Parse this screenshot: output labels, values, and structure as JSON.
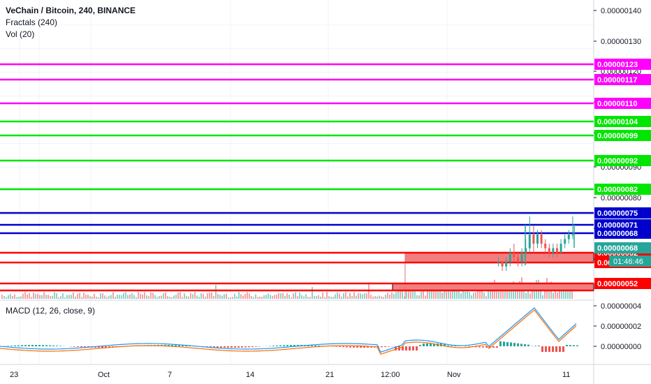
{
  "header": {
    "symbol": "VeChain / Bitcoin, 240, BINANCE",
    "indicator_fractals": "Fractals (240)",
    "indicator_vol": "Vol (20)",
    "macd_label": "MACD (12, 26, close, 9)"
  },
  "colors": {
    "magenta": "#ff00ff",
    "green": "#00e600",
    "blue": "#0000cc",
    "red": "#ff0000",
    "box_fill": "#f08080",
    "price_tag": "#26a69a",
    "timer_tag": "#26a69a",
    "macd_line": "#2196f3",
    "signal_line": "#ff6d00"
  },
  "price_axis": {
    "ticks": [
      "0.00000140",
      "0.00000130",
      "0.00000120",
      "0.00000110",
      "0.00000100",
      "0.00000090",
      "0.00000080",
      "0.00000070",
      "0.00000060"
    ],
    "tick_values": [
      140,
      130,
      120,
      110,
      100,
      90,
      80,
      70,
      60
    ]
  },
  "macd_axis": {
    "ticks": [
      "0.00000004",
      "0.00000002",
      "0.00000000"
    ]
  },
  "time_axis": {
    "labels": [
      "23",
      "Oct",
      "7",
      "14",
      "21",
      "12:00",
      "Nov",
      "11"
    ]
  },
  "levels": [
    {
      "label": "0.00000123",
      "value": 123,
      "color": "magenta"
    },
    {
      "label": "0.00000117",
      "value": 117,
      "color": "magenta"
    },
    {
      "label": "0.00000110",
      "value": 110,
      "color": "magenta"
    },
    {
      "label": "0.00000104",
      "value": 104,
      "color": "green"
    },
    {
      "label": "0.00000099",
      "value": 99,
      "color": "green"
    },
    {
      "label": "0.00000092",
      "value": 92,
      "color": "green"
    },
    {
      "label": "0.00000082",
      "value": 82,
      "color": "green"
    },
    {
      "label": "0.00000075",
      "value": 75,
      "color": "blue"
    },
    {
      "label": "0.00000071",
      "value": 71,
      "color": "blue"
    },
    {
      "label": "0.00000068",
      "value": 68,
      "color": "blue"
    },
    {
      "label": "0.00000062",
      "value": 62,
      "color": "red"
    },
    {
      "label": "0.00000059",
      "value": 59,
      "color": "red"
    },
    {
      "label": "0.00000052",
      "value": 52,
      "color": "red"
    }
  ],
  "current_price": {
    "label": "0.00000068",
    "countdown": "01:46:46"
  },
  "chart_data": {
    "type": "candlestick",
    "title": "VeChain / Bitcoin, 240, BINANCE",
    "y_unit_note": "price in units of 1e-8 BTC",
    "ylim": [
      52,
      143
    ],
    "candles_recent": [
      [
        62,
        63,
        61,
        62
      ],
      [
        62,
        62,
        60,
        61
      ],
      [
        61,
        63,
        60,
        62
      ],
      [
        62,
        65,
        61,
        64
      ],
      [
        64,
        66,
        62,
        63
      ],
      [
        63,
        64,
        61,
        62
      ],
      [
        62,
        65,
        61,
        64
      ],
      [
        64,
        67,
        63,
        65
      ],
      [
        65,
        72,
        64,
        68
      ],
      [
        68,
        70,
        64,
        66
      ],
      [
        66,
        69,
        65,
        68
      ],
      [
        68,
        69,
        65,
        66
      ],
      [
        66,
        67,
        64,
        65
      ],
      [
        65,
        66,
        63,
        64
      ],
      [
        64,
        66,
        63,
        65
      ],
      [
        65,
        66,
        63,
        64
      ],
      [
        64,
        67,
        64,
        66
      ],
      [
        66,
        68,
        65,
        67
      ],
      [
        67,
        69,
        66,
        68
      ],
      [
        68,
        72,
        67,
        68
      ]
    ]
  }
}
